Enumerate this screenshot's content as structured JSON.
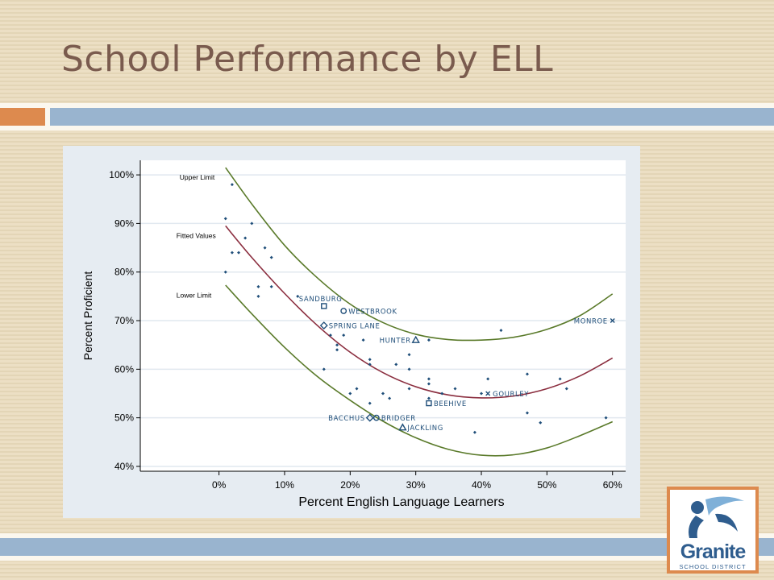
{
  "slide": {
    "title": "School Performance by ELL"
  },
  "logo": {
    "name": "Granite",
    "subtitle": "SCHOOL DISTRICT"
  },
  "colors": {
    "title": "#7a5b4e",
    "accent_orange": "#dd8a4e",
    "accent_blue": "#99b4cf",
    "limit_curve": "#5a7a2a",
    "fitted_curve": "#8b2e3f",
    "points": "#1f4e79"
  },
  "chart_data": {
    "type": "scatter",
    "xlabel": "Percent English Language Learners",
    "ylabel": "Percent Proficient",
    "xlim": [
      -12,
      62
    ],
    "ylim": [
      39,
      103
    ],
    "x_ticks": [
      0,
      10,
      20,
      30,
      40,
      50,
      60
    ],
    "x_tick_labels": [
      "0%",
      "10%",
      "20%",
      "30%",
      "40%",
      "50%",
      "60%"
    ],
    "y_ticks": [
      40,
      50,
      60,
      70,
      80,
      90,
      100
    ],
    "y_tick_labels": [
      "40%",
      "50%",
      "60%",
      "70%",
      "80%",
      "90%",
      "100%"
    ],
    "grid": true,
    "curve_labels": [
      {
        "text": "Upper Limit",
        "x": -6,
        "y": 99
      },
      {
        "text": "Fitted Values",
        "x": -6.5,
        "y": 87
      },
      {
        "text": "Lower Limit",
        "x": -6.5,
        "y": 74.7
      }
    ],
    "curves": [
      {
        "name": "Upper Limit",
        "points": [
          [
            1,
            101.5
          ],
          [
            5,
            94
          ],
          [
            10,
            85.5
          ],
          [
            15,
            78.8
          ],
          [
            20,
            73.4
          ],
          [
            25,
            69.6
          ],
          [
            30,
            67.2
          ],
          [
            35,
            66.1
          ],
          [
            40,
            66
          ],
          [
            45,
            66.6
          ],
          [
            50,
            68.2
          ],
          [
            55,
            71
          ],
          [
            60,
            75.5
          ]
        ]
      },
      {
        "name": "Fitted Values",
        "points": [
          [
            1,
            89.5
          ],
          [
            5,
            83
          ],
          [
            10,
            75.6
          ],
          [
            15,
            69
          ],
          [
            20,
            63.5
          ],
          [
            25,
            59.3
          ],
          [
            30,
            56.4
          ],
          [
            35,
            54.7
          ],
          [
            40,
            54.1
          ],
          [
            45,
            54.5
          ],
          [
            50,
            56
          ],
          [
            55,
            58.6
          ],
          [
            60,
            62.3
          ]
        ]
      },
      {
        "name": "Lower Limit",
        "points": [
          [
            1,
            77.3
          ],
          [
            5,
            71.4
          ],
          [
            10,
            64.5
          ],
          [
            15,
            58.5
          ],
          [
            20,
            53.6
          ],
          [
            25,
            49.3
          ],
          [
            30,
            45.9
          ],
          [
            35,
            43.5
          ],
          [
            40,
            42.3
          ],
          [
            45,
            42.4
          ],
          [
            50,
            43.8
          ],
          [
            55,
            46.3
          ],
          [
            60,
            49.2
          ]
        ]
      }
    ],
    "points": [
      {
        "x": 2,
        "y": 98
      },
      {
        "x": 1,
        "y": 91
      },
      {
        "x": 5,
        "y": 90
      },
      {
        "x": 4,
        "y": 87
      },
      {
        "x": 7,
        "y": 85
      },
      {
        "x": 2,
        "y": 84
      },
      {
        "x": 3,
        "y": 84
      },
      {
        "x": 8,
        "y": 83
      },
      {
        "x": 1,
        "y": 80
      },
      {
        "x": 6,
        "y": 77
      },
      {
        "x": 8,
        "y": 77
      },
      {
        "x": 6,
        "y": 75
      },
      {
        "x": 12,
        "y": 75
      },
      {
        "x": 43,
        "y": 68
      },
      {
        "x": 17,
        "y": 67
      },
      {
        "x": 19,
        "y": 67
      },
      {
        "x": 18,
        "y": 65
      },
      {
        "x": 22,
        "y": 66
      },
      {
        "x": 32,
        "y": 66
      },
      {
        "x": 18,
        "y": 64
      },
      {
        "x": 29,
        "y": 63
      },
      {
        "x": 23,
        "y": 62
      },
      {
        "x": 23,
        "y": 61
      },
      {
        "x": 27,
        "y": 61
      },
      {
        "x": 16,
        "y": 60
      },
      {
        "x": 29,
        "y": 60
      },
      {
        "x": 47,
        "y": 59
      },
      {
        "x": 32,
        "y": 58
      },
      {
        "x": 41,
        "y": 58
      },
      {
        "x": 52,
        "y": 58
      },
      {
        "x": 32,
        "y": 57
      },
      {
        "x": 21,
        "y": 56
      },
      {
        "x": 29,
        "y": 56
      },
      {
        "x": 36,
        "y": 56
      },
      {
        "x": 53,
        "y": 56
      },
      {
        "x": 20,
        "y": 55
      },
      {
        "x": 25,
        "y": 55
      },
      {
        "x": 34,
        "y": 55
      },
      {
        "x": 40,
        "y": 55
      },
      {
        "x": 26,
        "y": 54
      },
      {
        "x": 32,
        "y": 54
      },
      {
        "x": 23,
        "y": 53
      },
      {
        "x": 47,
        "y": 51
      },
      {
        "x": 59,
        "y": 50
      },
      {
        "x": 49,
        "y": 49
      },
      {
        "x": 39,
        "y": 47
      }
    ],
    "labeled_schools": [
      {
        "name": "SANDBURG",
        "x": 16,
        "y": 73,
        "marker": "square"
      },
      {
        "name": "WESTBROOK",
        "x": 19,
        "y": 72,
        "marker": "circle"
      },
      {
        "name": "SPRING LANE",
        "x": 16,
        "y": 69,
        "marker": "diamond"
      },
      {
        "name": "HUNTER",
        "x": 30,
        "y": 66,
        "marker": "triangle"
      },
      {
        "name": "MONROE",
        "x": 60,
        "y": 70,
        "marker": "x"
      },
      {
        "name": "GOURLEY",
        "x": 41,
        "y": 55,
        "marker": "x"
      },
      {
        "name": "BEEHIVE",
        "x": 32,
        "y": 53,
        "marker": "square"
      },
      {
        "name": "BACCHUS",
        "x": 23,
        "y": 50,
        "marker": "diamond"
      },
      {
        "name": "BRIDGER",
        "x": 24,
        "y": 50,
        "marker": "circle"
      },
      {
        "name": "JACKLING",
        "x": 28,
        "y": 48,
        "marker": "triangle"
      }
    ]
  }
}
